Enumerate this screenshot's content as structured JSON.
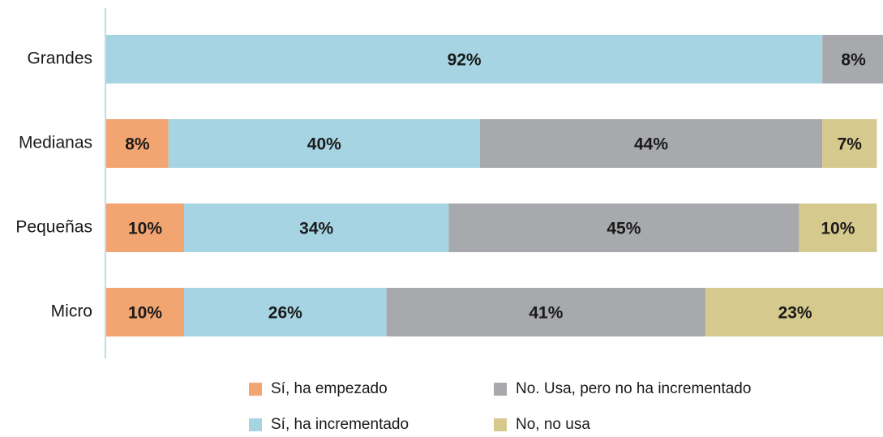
{
  "chart_data": {
    "type": "stacked_bar_horizontal",
    "categories": [
      "Grandes",
      "Medianas",
      "Pequeñas",
      "Micro"
    ],
    "series": [
      {
        "name": "Sí, ha empezado",
        "color": "#f2a571",
        "values": [
          null,
          8,
          10,
          10
        ],
        "value_labels": [
          null,
          "8%",
          "10%",
          "10%"
        ]
      },
      {
        "name": "Sí, ha incrementado",
        "color": "#a6d4e2",
        "values": [
          92,
          40,
          34,
          26
        ],
        "value_labels": [
          "92%",
          "40%",
          "34%",
          "26%"
        ]
      },
      {
        "name": "No. Usa, pero no ha incrementado",
        "color": "#a7a9ac",
        "values": [
          8,
          44,
          45,
          41
        ],
        "value_labels": [
          "8%",
          "44%",
          "45%",
          "41%"
        ]
      },
      {
        "name": "No, no usa",
        "color": "#d6c98e",
        "values": [
          null,
          7,
          10,
          23
        ],
        "value_labels": [
          null,
          "7%",
          "10%",
          "23%"
        ]
      }
    ]
  }
}
